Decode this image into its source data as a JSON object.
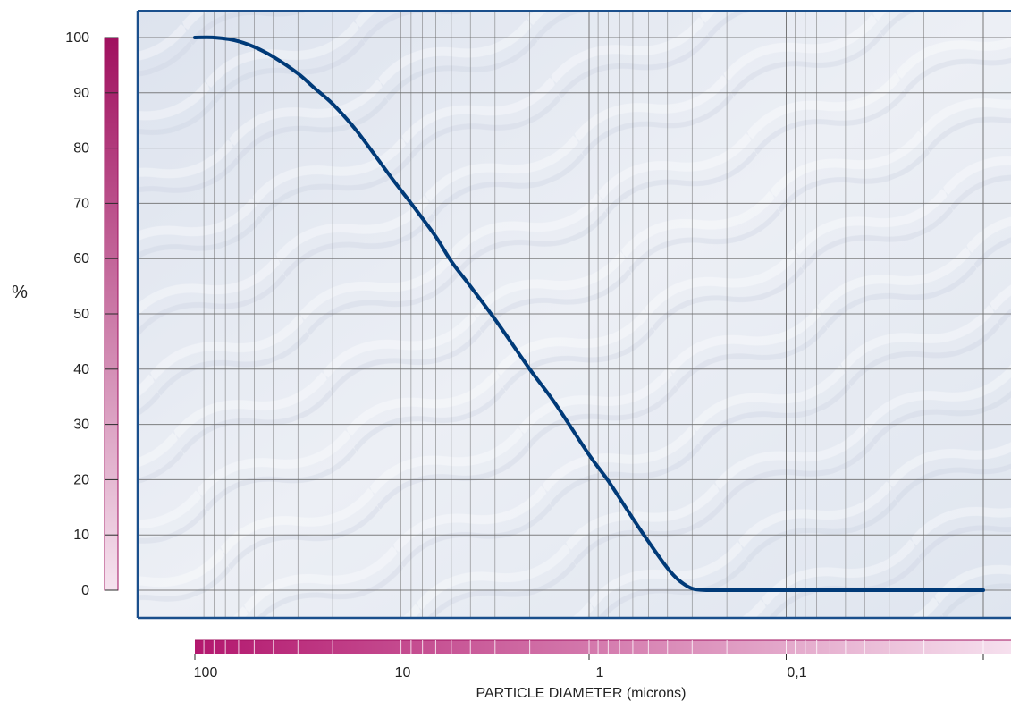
{
  "chart_data": {
    "type": "line",
    "xlabel": "PARTICLE DIAMETER (microns)",
    "ylabel": "%",
    "x_scale": "log",
    "x_direction": "descending",
    "xlim": [
      100,
      0.01
    ],
    "ylim": [
      0,
      100
    ],
    "xticks": [
      {
        "value": 100,
        "label": "100"
      },
      {
        "value": 10,
        "label": "10"
      },
      {
        "value": 1,
        "label": "1"
      },
      {
        "value": 0.1,
        "label": "0,1"
      }
    ],
    "yticks": [
      {
        "value": 0,
        "label": "0"
      },
      {
        "value": 10,
        "label": "10"
      },
      {
        "value": 20,
        "label": "20"
      },
      {
        "value": 30,
        "label": "30"
      },
      {
        "value": 40,
        "label": "40"
      },
      {
        "value": 50,
        "label": "50"
      },
      {
        "value": 60,
        "label": "60"
      },
      {
        "value": 70,
        "label": "70"
      },
      {
        "value": 80,
        "label": "80"
      },
      {
        "value": 90,
        "label": "90"
      },
      {
        "value": 100,
        "label": "100"
      }
    ],
    "grid": true,
    "series": [
      {
        "color": "#003a78",
        "x": [
          100,
          80,
          63,
          50,
          40,
          30,
          25,
          20,
          15,
          10,
          8,
          6,
          5,
          4,
          3,
          2,
          1.5,
          1,
          0.8,
          0.6,
          0.5,
          0.4,
          0.35,
          0.3,
          0.25,
          0.2,
          0.15,
          0.1,
          0.05,
          0.02,
          0.01
        ],
        "y": [
          100,
          100,
          99.5,
          98.3,
          96.5,
          93.5,
          91,
          88,
          83,
          74.5,
          70,
          64,
          59.5,
          55,
          49,
          40,
          34,
          24.5,
          19.8,
          13,
          8.8,
          4,
          1.8,
          0.3,
          0,
          0,
          0,
          0,
          0,
          0,
          0
        ]
      }
    ]
  },
  "colors": {
    "plot_border": "#1a4f8c",
    "plot_background": "#e4e9f1",
    "gridline": "#6b6b6b",
    "curve": "#003a78",
    "scale_dark": "#a0105f",
    "scale_light": "#f6e3ef"
  }
}
